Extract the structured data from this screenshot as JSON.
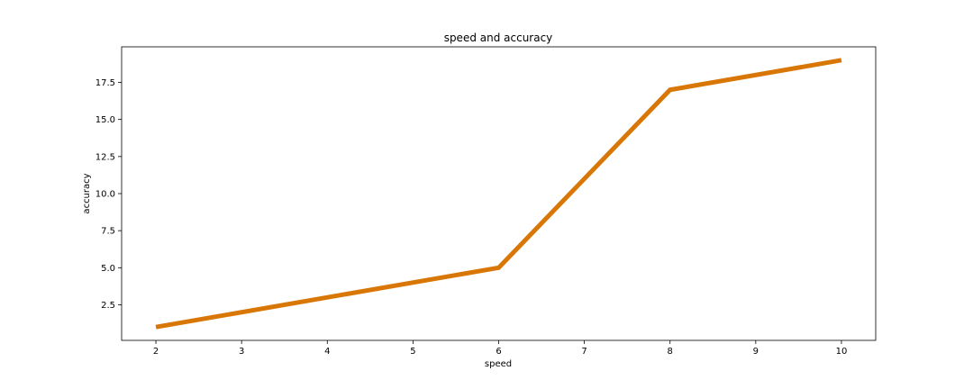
{
  "chart_data": {
    "type": "line",
    "title": "speed and accuracy",
    "xlabel": "speed",
    "ylabel": "accuracy",
    "x": [
      2,
      6,
      8,
      10
    ],
    "series": [
      {
        "values": [
          1,
          5,
          17,
          19
        ],
        "color": "#d97706"
      }
    ],
    "xlim": [
      1.6,
      10.4
    ],
    "ylim": [
      0.1,
      19.9
    ],
    "xticks": [
      2,
      3,
      4,
      5,
      6,
      7,
      8,
      9,
      10
    ],
    "xtick_labels": [
      "2",
      "3",
      "4",
      "5",
      "6",
      "7",
      "8",
      "9",
      "10"
    ],
    "yticks": [
      2.5,
      5.0,
      7.5,
      10.0,
      12.5,
      15.0,
      17.5
    ],
    "ytick_labels": [
      "2.5",
      "5.0",
      "7.5",
      "10.0",
      "12.5",
      "15.0",
      "17.5"
    ],
    "grid": false,
    "legend": "none"
  }
}
